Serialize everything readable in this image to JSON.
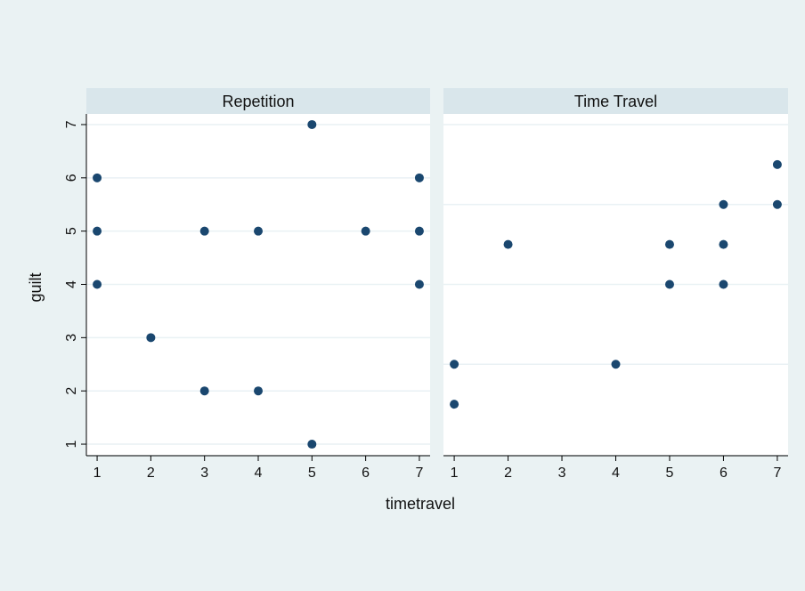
{
  "chart_data": {
    "type": "scatter",
    "xlabel": "timetravel",
    "ylabel": "guilt",
    "x_ticks": [
      1,
      2,
      3,
      4,
      5,
      6,
      7
    ],
    "y_ticks": [
      1,
      2,
      3,
      4,
      5,
      6,
      7
    ],
    "xlim": [
      0.8,
      7.2
    ],
    "ylim": [
      0.8,
      7.2
    ],
    "colors": {
      "background": "#eaf2f3",
      "plot_region": "#ffffff",
      "panel_header": "#d9e6eb",
      "gridline": "#e9f1f4",
      "marker": "#1a476f"
    },
    "panels": [
      {
        "title": "Repetition",
        "points": [
          {
            "x": 1,
            "y": 6
          },
          {
            "x": 1,
            "y": 5
          },
          {
            "x": 1,
            "y": 4
          },
          {
            "x": 2,
            "y": 3
          },
          {
            "x": 3,
            "y": 5
          },
          {
            "x": 3,
            "y": 2
          },
          {
            "x": 4,
            "y": 5
          },
          {
            "x": 4,
            "y": 2
          },
          {
            "x": 5,
            "y": 7
          },
          {
            "x": 5,
            "y": 1
          },
          {
            "x": 6,
            "y": 5
          },
          {
            "x": 7,
            "y": 6
          },
          {
            "x": 7,
            "y": 5
          },
          {
            "x": 7,
            "y": 4
          }
        ]
      },
      {
        "title": "Time Travel",
        "points": [
          {
            "x": 1,
            "y": 2.5
          },
          {
            "x": 1,
            "y": 1.75
          },
          {
            "x": 2,
            "y": 4.75
          },
          {
            "x": 4,
            "y": 2.5
          },
          {
            "x": 5,
            "y": 4.75
          },
          {
            "x": 5,
            "y": 4
          },
          {
            "x": 6,
            "y": 5.5
          },
          {
            "x": 6,
            "y": 4.75
          },
          {
            "x": 6,
            "y": 4
          },
          {
            "x": 7,
            "y": 6.25
          },
          {
            "x": 7,
            "y": 5.5
          }
        ],
        "gridlines_y": [
          2.5,
          4,
          5.5,
          7
        ]
      }
    ]
  }
}
